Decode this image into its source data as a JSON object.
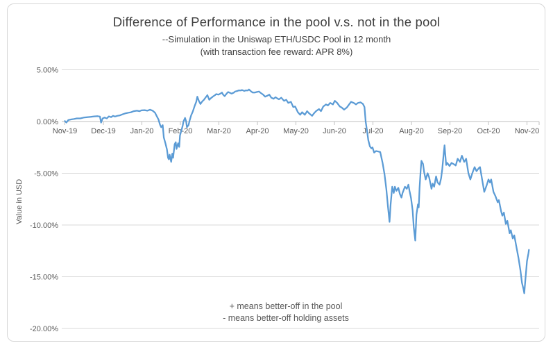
{
  "chart_data": {
    "type": "line",
    "title": "Difference of Performance in the pool v.s. not in the pool",
    "subtitle_lines": [
      "--Simulation in the Uniswap ETH/USDC Pool in 12 month",
      "(with transaction fee reward: APR 8%)"
    ],
    "ylabel": "Value in USD",
    "annotation_lines": [
      "+ means better-off  in the pool",
      "- means better-off  holding assets"
    ],
    "x_tick_labels": [
      "Nov-19",
      "Dec-19",
      "Jan-20",
      "Feb-20",
      "Mar-20",
      "Apr-20",
      "May-20",
      "Jun-20",
      "Jul-20",
      "Aug-20",
      "Sep-20",
      "Oct-20",
      "Nov-20"
    ],
    "y_tick_labels": [
      "5.00%",
      "0.00%",
      "-5.00%",
      "-10.00%",
      "-15.00%",
      "-20.00%"
    ],
    "y_axis": {
      "min": -20,
      "max": 5,
      "step": 5,
      "unit": "%"
    },
    "x_axis": {
      "unit": "months",
      "range": [
        0,
        12
      ]
    },
    "legend": "none",
    "grid": true,
    "line_color": "#5B9BD5",
    "grid_color": "#d9d9d9",
    "axis_color": "#bfbfbf",
    "series": [
      {
        "points": [
          [
            0,
            0.05
          ],
          [
            0.04,
            -0.1
          ],
          [
            0.09,
            0.15
          ],
          [
            0.16,
            0.2
          ],
          [
            0.24,
            0.25
          ],
          [
            0.31,
            0.3
          ],
          [
            0.4,
            0.3
          ],
          [
            0.49,
            0.38
          ],
          [
            0.58,
            0.42
          ],
          [
            0.67,
            0.45
          ],
          [
            0.76,
            0.5
          ],
          [
            0.85,
            0.52
          ],
          [
            0.91,
            0.48
          ],
          [
            0.94,
            -0.1
          ],
          [
            0.98,
            0.3
          ],
          [
            1.03,
            0.38
          ],
          [
            1.09,
            0.3
          ],
          [
            1.14,
            0.5
          ],
          [
            1.2,
            0.42
          ],
          [
            1.25,
            0.55
          ],
          [
            1.3,
            0.48
          ],
          [
            1.36,
            0.55
          ],
          [
            1.43,
            0.6
          ],
          [
            1.5,
            0.7
          ],
          [
            1.58,
            0.8
          ],
          [
            1.65,
            0.85
          ],
          [
            1.72,
            0.9
          ],
          [
            1.79,
            1.0
          ],
          [
            1.87,
            1.05
          ],
          [
            1.94,
            1.0
          ],
          [
            1.99,
            1.08
          ],
          [
            2.07,
            1.1
          ],
          [
            2.14,
            1.05
          ],
          [
            2.21,
            1.15
          ],
          [
            2.28,
            1.05
          ],
          [
            2.34,
            0.85
          ],
          [
            2.39,
            0.5
          ],
          [
            2.43,
            0.2
          ],
          [
            2.47,
            -0.3
          ],
          [
            2.5,
            -0.55
          ],
          [
            2.54,
            -0.35
          ],
          [
            2.57,
            -1.55
          ],
          [
            2.61,
            -2.1
          ],
          [
            2.65,
            -2.7
          ],
          [
            2.68,
            -3.5
          ],
          [
            2.7,
            -3.65
          ],
          [
            2.72,
            -3.2
          ],
          [
            2.76,
            -3.9
          ],
          [
            2.79,
            -3.1
          ],
          [
            2.81,
            -3.5
          ],
          [
            2.85,
            -2.2
          ],
          [
            2.88,
            -2.0
          ],
          [
            2.9,
            -2.65
          ],
          [
            2.94,
            -2.1
          ],
          [
            2.97,
            -2.45
          ],
          [
            2.99,
            -1.35
          ],
          [
            3.03,
            -0.8
          ],
          [
            3.06,
            -0.4
          ],
          [
            3.08,
            0.0
          ],
          [
            3.12,
            0.35
          ],
          [
            3.15,
            0.0
          ],
          [
            3.17,
            -0.55
          ],
          [
            3.21,
            -0.35
          ],
          [
            3.24,
            0.1
          ],
          [
            3.28,
            0.6
          ],
          [
            3.32,
            0.95
          ],
          [
            3.37,
            1.5
          ],
          [
            3.41,
            1.9
          ],
          [
            3.44,
            2.4
          ],
          [
            3.48,
            2.0
          ],
          [
            3.52,
            1.7
          ],
          [
            3.57,
            1.95
          ],
          [
            3.61,
            2.1
          ],
          [
            3.66,
            2.35
          ],
          [
            3.7,
            2.55
          ],
          [
            3.75,
            2.1
          ],
          [
            3.79,
            2.25
          ],
          [
            3.84,
            2.4
          ],
          [
            3.9,
            2.55
          ],
          [
            3.93,
            2.65
          ],
          [
            3.99,
            2.6
          ],
          [
            4.04,
            2.7
          ],
          [
            4.08,
            2.8
          ],
          [
            4.11,
            2.6
          ],
          [
            4.15,
            2.45
          ],
          [
            4.2,
            2.7
          ],
          [
            4.24,
            2.85
          ],
          [
            4.3,
            2.75
          ],
          [
            4.33,
            2.7
          ],
          [
            4.39,
            2.8
          ],
          [
            4.42,
            2.9
          ],
          [
            4.48,
            2.95
          ],
          [
            4.51,
            3.0
          ],
          [
            4.57,
            3.0
          ],
          [
            4.6,
            3.05
          ],
          [
            4.66,
            2.95
          ],
          [
            4.69,
            3.0
          ],
          [
            4.75,
            3.0
          ],
          [
            4.78,
            3.1
          ],
          [
            4.84,
            2.9
          ],
          [
            4.88,
            2.8
          ],
          [
            4.93,
            2.8
          ],
          [
            4.98,
            2.85
          ],
          [
            5.04,
            2.9
          ],
          [
            5.09,
            2.75
          ],
          [
            5.15,
            2.6
          ],
          [
            5.2,
            2.4
          ],
          [
            5.26,
            2.5
          ],
          [
            5.31,
            2.6
          ],
          [
            5.36,
            2.3
          ],
          [
            5.42,
            2.2
          ],
          [
            5.47,
            2.35
          ],
          [
            5.53,
            2.2
          ],
          [
            5.56,
            2.15
          ],
          [
            5.62,
            2.3
          ],
          [
            5.69,
            2.0
          ],
          [
            5.75,
            2.1
          ],
          [
            5.8,
            1.8
          ],
          [
            5.87,
            1.9
          ],
          [
            5.93,
            1.4
          ],
          [
            5.98,
            1.45
          ],
          [
            6.05,
            0.9
          ],
          [
            6.11,
            0.65
          ],
          [
            6.16,
            0.9
          ],
          [
            6.23,
            0.65
          ],
          [
            6.29,
            1.0
          ],
          [
            6.34,
            0.8
          ],
          [
            6.42,
            0.55
          ],
          [
            6.47,
            0.8
          ],
          [
            6.52,
            1.0
          ],
          [
            6.6,
            1.2
          ],
          [
            6.65,
            1.0
          ],
          [
            6.71,
            1.45
          ],
          [
            6.78,
            1.65
          ],
          [
            6.83,
            1.55
          ],
          [
            6.89,
            1.8
          ],
          [
            6.96,
            1.65
          ],
          [
            7.01,
            2.0
          ],
          [
            7.07,
            1.8
          ],
          [
            7.14,
            1.45
          ],
          [
            7.19,
            1.35
          ],
          [
            7.25,
            1.15
          ],
          [
            7.32,
            1.35
          ],
          [
            7.38,
            1.65
          ],
          [
            7.43,
            1.9
          ],
          [
            7.5,
            1.8
          ],
          [
            7.56,
            1.65
          ],
          [
            7.61,
            1.8
          ],
          [
            7.68,
            1.85
          ],
          [
            7.74,
            1.7
          ],
          [
            7.78,
            1.4
          ],
          [
            7.81,
            0.0
          ],
          [
            7.85,
            -1.0
          ],
          [
            7.88,
            -1.8
          ],
          [
            7.92,
            -2.4
          ],
          [
            7.96,
            -2.6
          ],
          [
            7.99,
            -2.5
          ],
          [
            8.03,
            -3.0
          ],
          [
            8.08,
            -2.85
          ],
          [
            8.14,
            -2.9
          ],
          [
            8.19,
            -2.95
          ],
          [
            8.25,
            -4.0
          ],
          [
            8.3,
            -5.1
          ],
          [
            8.35,
            -6.6
          ],
          [
            8.39,
            -8.2
          ],
          [
            8.43,
            -9.7
          ],
          [
            8.46,
            -8.0
          ],
          [
            8.5,
            -6.3
          ],
          [
            8.54,
            -6.9
          ],
          [
            8.57,
            -6.3
          ],
          [
            8.61,
            -6.7
          ],
          [
            8.66,
            -6.4
          ],
          [
            8.7,
            -7.0
          ],
          [
            8.74,
            -7.35
          ],
          [
            8.77,
            -6.9
          ],
          [
            8.83,
            -6.3
          ],
          [
            8.88,
            -6.5
          ],
          [
            8.92,
            -6.1
          ],
          [
            8.95,
            -6.7
          ],
          [
            8.99,
            -7.4
          ],
          [
            9.03,
            -8.6
          ],
          [
            9.06,
            -10.2
          ],
          [
            9.1,
            -11.5
          ],
          [
            9.13,
            -9.0
          ],
          [
            9.17,
            -8.0
          ],
          [
            9.19,
            -8.3
          ],
          [
            9.21,
            -6.4
          ],
          [
            9.24,
            -4.7
          ],
          [
            9.26,
            -3.8
          ],
          [
            9.3,
            -4.1
          ],
          [
            9.33,
            -4.9
          ],
          [
            9.37,
            -5.6
          ],
          [
            9.42,
            -5.0
          ],
          [
            9.46,
            -5.4
          ],
          [
            9.52,
            -6.5
          ],
          [
            9.55,
            -6.0
          ],
          [
            9.59,
            -6.3
          ],
          [
            9.64,
            -5.3
          ],
          [
            9.68,
            -5.9
          ],
          [
            9.73,
            -6.1
          ],
          [
            9.77,
            -5.5
          ],
          [
            9.8,
            -4.6
          ],
          [
            9.84,
            -3.0
          ],
          [
            9.86,
            -2.3
          ],
          [
            9.9,
            -4.2
          ],
          [
            9.93,
            -4.0
          ],
          [
            9.99,
            -4.3
          ],
          [
            10.04,
            -4.0
          ],
          [
            10.09,
            -4.1
          ],
          [
            10.15,
            -4.25
          ],
          [
            10.2,
            -3.6
          ],
          [
            10.26,
            -3.9
          ],
          [
            10.31,
            -3.3
          ],
          [
            10.37,
            -3.9
          ],
          [
            10.42,
            -3.6
          ],
          [
            10.48,
            -5.0
          ],
          [
            10.53,
            -5.6
          ],
          [
            10.58,
            -5.0
          ],
          [
            10.64,
            -4.4
          ],
          [
            10.69,
            -4.8
          ],
          [
            10.75,
            -4.5
          ],
          [
            10.78,
            -4.4
          ],
          [
            10.84,
            -5.7
          ],
          [
            10.89,
            -6.8
          ],
          [
            10.95,
            -6.2
          ],
          [
            11.0,
            -5.6
          ],
          [
            11.04,
            -5.9
          ],
          [
            11.07,
            -5.6
          ],
          [
            11.13,
            -6.8
          ],
          [
            11.18,
            -7.2
          ],
          [
            11.24,
            -7.8
          ],
          [
            11.27,
            -7.6
          ],
          [
            11.33,
            -8.7
          ],
          [
            11.36,
            -9.1
          ],
          [
            11.4,
            -8.8
          ],
          [
            11.45,
            -9.9
          ],
          [
            11.49,
            -9.6
          ],
          [
            11.55,
            -10.8
          ],
          [
            11.58,
            -10.5
          ],
          [
            11.63,
            -11.3
          ],
          [
            11.67,
            -11.0
          ],
          [
            11.73,
            -12.2
          ],
          [
            11.78,
            -13.2
          ],
          [
            11.83,
            -14.4
          ],
          [
            11.87,
            -15.6
          ],
          [
            11.91,
            -16.2
          ],
          [
            11.93,
            -16.6
          ],
          [
            11.96,
            -15.2
          ],
          [
            12.0,
            -13.5
          ],
          [
            12.04,
            -12.7
          ],
          [
            12.05,
            -12.4
          ]
        ]
      }
    ]
  }
}
